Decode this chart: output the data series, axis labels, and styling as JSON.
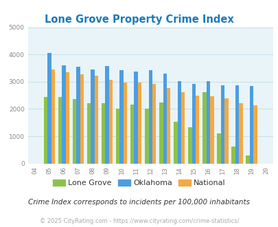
{
  "title": "Lone Grove Property Crime Index",
  "years": [
    "04",
    "05",
    "06",
    "07",
    "08",
    "09",
    "10",
    "11",
    "12",
    "13",
    "14",
    "15",
    "16",
    "17",
    "18",
    "19",
    "20"
  ],
  "lone_grove": [
    null,
    2450,
    2430,
    2370,
    2200,
    2200,
    2020,
    2150,
    2020,
    2230,
    1520,
    1340,
    2620,
    1100,
    620,
    290,
    null
  ],
  "oklahoma": [
    null,
    4050,
    3600,
    3540,
    3450,
    3580,
    3420,
    3370,
    3430,
    3300,
    3010,
    2930,
    3010,
    2880,
    2880,
    2840,
    null
  ],
  "national": [
    null,
    3460,
    3360,
    3270,
    3230,
    3060,
    2960,
    2960,
    2910,
    2760,
    2620,
    2500,
    2470,
    2380,
    2200,
    2140,
    null
  ],
  "lone_grove_color": "#8bc34a",
  "oklahoma_color": "#4d9de0",
  "national_color": "#f4a942",
  "bg_color": "#e8f4f8",
  "ylim": [
    0,
    5000
  ],
  "yticks": [
    0,
    1000,
    2000,
    3000,
    4000,
    5000
  ],
  "subtitle": "Crime Index corresponds to incidents per 100,000 inhabitants",
  "footer": "© 2025 CityRating.com - https://www.cityrating.com/crime-statistics/",
  "legend_labels": [
    "Lone Grove",
    "Oklahoma",
    "National"
  ],
  "title_color": "#1a7abf",
  "subtitle_color": "#333333",
  "footer_color": "#aaaaaa",
  "tick_color": "#888888",
  "grid_color": "#c8dde8"
}
